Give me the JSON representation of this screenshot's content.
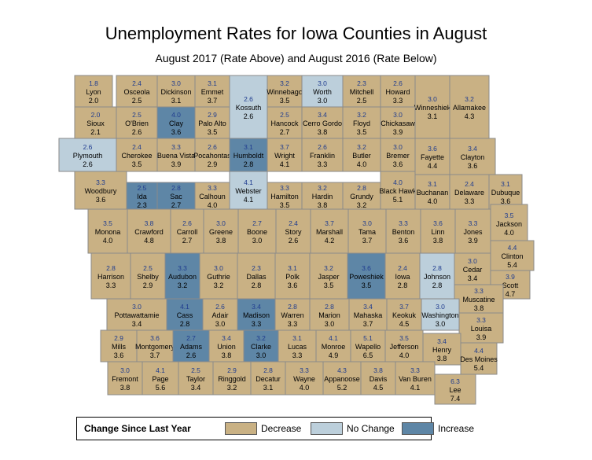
{
  "title": "Unemployment Rates for Iowa Counties in August",
  "subtitle": "August 2017 (Rate Above) and August 2016 (Rate Below)",
  "colors": {
    "decrease": "#c9b184",
    "nochange": "#bccfdb",
    "increase": "#5e86a6",
    "border": "#8a8a8a"
  },
  "legend": {
    "title": "Change Since Last Year",
    "decrease": "Decrease",
    "nochange": "No Change",
    "increase": "Increase"
  },
  "counties": [
    {
      "name": "Lyon",
      "r17": "1.8",
      "r16": "2.0",
      "c": "d"
    },
    {
      "name": "Osceola",
      "r17": "2.4",
      "r16": "2.5",
      "c": "d"
    },
    {
      "name": "Dickinson",
      "r17": "3.0",
      "r16": "3.1",
      "c": "d"
    },
    {
      "name": "Emmet",
      "r17": "3.1",
      "r16": "3.7",
      "c": "d"
    },
    {
      "name": "Kossuth",
      "r17": "2.6",
      "r16": "2.6",
      "c": "n"
    },
    {
      "name": "Winnebago",
      "r17": "3.2",
      "r16": "3.5",
      "c": "d"
    },
    {
      "name": "Worth",
      "r17": "3.0",
      "r16": "3.0",
      "c": "n"
    },
    {
      "name": "Mitchell",
      "r17": "2.3",
      "r16": "2.5",
      "c": "d"
    },
    {
      "name": "Howard",
      "r17": "2.6",
      "r16": "3.3",
      "c": "d"
    },
    {
      "name": "Winneshiek",
      "r17": "3.0",
      "r16": "3.1",
      "c": "d"
    },
    {
      "name": "Allamakee",
      "r17": "3.2",
      "r16": "4.3",
      "c": "d"
    },
    {
      "name": "Sioux",
      "r17": "2.0",
      "r16": "2.1",
      "c": "d"
    },
    {
      "name": "O'Brien",
      "r17": "2.5",
      "r16": "2.6",
      "c": "d"
    },
    {
      "name": "Clay",
      "r17": "4.0",
      "r16": "3.6",
      "c": "i"
    },
    {
      "name": "Palo Alto",
      "r17": "2.9",
      "r16": "3.5",
      "c": "d"
    },
    {
      "name": "Hancock",
      "r17": "2.5",
      "r16": "2.7",
      "c": "d"
    },
    {
      "name": "Cerro Gordo",
      "r17": "3.4",
      "r16": "3.8",
      "c": "d"
    },
    {
      "name": "Floyd",
      "r17": "3.2",
      "r16": "3.5",
      "c": "d"
    },
    {
      "name": "Chickasaw",
      "r17": "3.0",
      "r16": "3.9",
      "c": "d"
    },
    {
      "name": "Plymouth",
      "r17": "2.6",
      "r16": "2.6",
      "c": "n"
    },
    {
      "name": "Cherokee",
      "r17": "2.4",
      "r16": "3.5",
      "c": "d"
    },
    {
      "name": "Buena Vista",
      "r17": "3.3",
      "r16": "3.9",
      "c": "d"
    },
    {
      "name": "Pocahontas",
      "r17": "2.6",
      "r16": "2.9",
      "c": "d"
    },
    {
      "name": "Humboldt",
      "r17": "3.1",
      "r16": "2.8",
      "c": "i"
    },
    {
      "name": "Wright",
      "r17": "3.7",
      "r16": "4.1",
      "c": "d"
    },
    {
      "name": "Franklin",
      "r17": "2.6",
      "r16": "3.3",
      "c": "d"
    },
    {
      "name": "Butler",
      "r17": "3.2",
      "r16": "4.0",
      "c": "d"
    },
    {
      "name": "Bremer",
      "r17": "3.0",
      "r16": "3.6",
      "c": "d"
    },
    {
      "name": "Fayette",
      "r17": "3.6",
      "r16": "4.4",
      "c": "d"
    },
    {
      "name": "Clayton",
      "r17": "3.4",
      "r16": "3.6",
      "c": "d"
    },
    {
      "name": "Woodbury",
      "r17": "3.3",
      "r16": "3.6",
      "c": "d"
    },
    {
      "name": "Ida",
      "r17": "2.5",
      "r16": "2.3",
      "c": "i"
    },
    {
      "name": "Sac",
      "r17": "2.8",
      "r16": "2.7",
      "c": "i"
    },
    {
      "name": "Calhoun",
      "r17": "3.3",
      "r16": "4.0",
      "c": "d"
    },
    {
      "name": "Webster",
      "r17": "4.1",
      "r16": "4.1",
      "c": "n"
    },
    {
      "name": "Hamilton",
      "r17": "3.3",
      "r16": "3.5",
      "c": "d"
    },
    {
      "name": "Hardin",
      "r17": "3.2",
      "r16": "3.8",
      "c": "d"
    },
    {
      "name": "Grundy",
      "r17": "2.8",
      "r16": "3.2",
      "c": "d"
    },
    {
      "name": "Black Hawk",
      "r17": "4.0",
      "r16": "5.1",
      "c": "d"
    },
    {
      "name": "Buchanan",
      "r17": "3.1",
      "r16": "4.0",
      "c": "d"
    },
    {
      "name": "Delaware",
      "r17": "2.4",
      "r16": "3.3",
      "c": "d"
    },
    {
      "name": "Dubuque",
      "r17": "3.1",
      "r16": "3.6",
      "c": "d"
    },
    {
      "name": "Monona",
      "r17": "3.5",
      "r16": "4.0",
      "c": "d"
    },
    {
      "name": "Crawford",
      "r17": "3.8",
      "r16": "4.8",
      "c": "d"
    },
    {
      "name": "Carroll",
      "r17": "2.6",
      "r16": "2.7",
      "c": "d"
    },
    {
      "name": "Greene",
      "r17": "3.0",
      "r16": "3.8",
      "c": "d"
    },
    {
      "name": "Boone",
      "r17": "2.7",
      "r16": "3.0",
      "c": "d"
    },
    {
      "name": "Story",
      "r17": "2.4",
      "r16": "2.6",
      "c": "d"
    },
    {
      "name": "Marshall",
      "r17": "3.7",
      "r16": "4.2",
      "c": "d"
    },
    {
      "name": "Tama",
      "r17": "3.0",
      "r16": "3.7",
      "c": "d"
    },
    {
      "name": "Benton",
      "r17": "3.3",
      "r16": "3.6",
      "c": "d"
    },
    {
      "name": "Linn",
      "r17": "3.6",
      "r16": "3.8",
      "c": "d"
    },
    {
      "name": "Jones",
      "r17": "3.3",
      "r16": "3.9",
      "c": "d"
    },
    {
      "name": "Jackson",
      "r17": "3.5",
      "r16": "4.0",
      "c": "d"
    },
    {
      "name": "Clinton",
      "r17": "4.4",
      "r16": "5.4",
      "c": "d"
    },
    {
      "name": "Harrison",
      "r17": "2.8",
      "r16": "3.3",
      "c": "d"
    },
    {
      "name": "Shelby",
      "r17": "2.5",
      "r16": "2.9",
      "c": "d"
    },
    {
      "name": "Audubon",
      "r17": "3.3",
      "r16": "3.2",
      "c": "i"
    },
    {
      "name": "Guthrie",
      "r17": "3.0",
      "r16": "3.2",
      "c": "d"
    },
    {
      "name": "Dallas",
      "r17": "2.3",
      "r16": "2.8",
      "c": "d"
    },
    {
      "name": "Polk",
      "r17": "3.1",
      "r16": "3.6",
      "c": "d"
    },
    {
      "name": "Jasper",
      "r17": "3.2",
      "r16": "3.5",
      "c": "d"
    },
    {
      "name": "Poweshiek",
      "r17": "3.6",
      "r16": "3.5",
      "c": "i"
    },
    {
      "name": "Iowa",
      "r17": "2.4",
      "r16": "2.8",
      "c": "d"
    },
    {
      "name": "Johnson",
      "r17": "2.8",
      "r16": "2.8",
      "c": "n"
    },
    {
      "name": "Cedar",
      "r17": "3.0",
      "r16": "3.4",
      "c": "d"
    },
    {
      "name": "Scott",
      "r17": "3.9",
      "r16": "4.7",
      "c": "d"
    },
    {
      "name": "Muscatine",
      "r17": "3.3",
      "r16": "3.8",
      "c": "d"
    },
    {
      "name": "Pottawattamie",
      "r17": "3.0",
      "r16": "3.4",
      "c": "d"
    },
    {
      "name": "Cass",
      "r17": "4.1",
      "r16": "2.8",
      "c": "i"
    },
    {
      "name": "Adair",
      "r17": "2.6",
      "r16": "3.0",
      "c": "d"
    },
    {
      "name": "Madison",
      "r17": "3.4",
      "r16": "3.3",
      "c": "i"
    },
    {
      "name": "Warren",
      "r17": "2.8",
      "r16": "3.3",
      "c": "d"
    },
    {
      "name": "Marion",
      "r17": "2.8",
      "r16": "3.0",
      "c": "d"
    },
    {
      "name": "Mahaska",
      "r17": "3.4",
      "r16": "3.7",
      "c": "d"
    },
    {
      "name": "Keokuk",
      "r17": "3.7",
      "r16": "4.5",
      "c": "d"
    },
    {
      "name": "Washington",
      "r17": "3.0",
      "r16": "3.0",
      "c": "n"
    },
    {
      "name": "Louisa",
      "r17": "3.3",
      "r16": "3.9",
      "c": "d"
    },
    {
      "name": "Mills",
      "r17": "2.9",
      "r16": "3.6",
      "c": "d"
    },
    {
      "name": "Montgomery",
      "r17": "3.6",
      "r16": "3.7",
      "c": "d"
    },
    {
      "name": "Adams",
      "r17": "2.7",
      "r16": "2.6",
      "c": "i"
    },
    {
      "name": "Union",
      "r17": "3.4",
      "r16": "3.8",
      "c": "d"
    },
    {
      "name": "Clarke",
      "r17": "3.2",
      "r16": "3.0",
      "c": "i"
    },
    {
      "name": "Lucas",
      "r17": "3.1",
      "r16": "3.3",
      "c": "d"
    },
    {
      "name": "Monroe",
      "r17": "4.1",
      "r16": "4.9",
      "c": "d"
    },
    {
      "name": "Wapello",
      "r17": "5.1",
      "r16": "6.5",
      "c": "d"
    },
    {
      "name": "Jefferson",
      "r17": "3.5",
      "r16": "4.0",
      "c": "d"
    },
    {
      "name": "Henry",
      "r17": "3.4",
      "r16": "3.8",
      "c": "d"
    },
    {
      "name": "Des Moines",
      "r17": "4.4",
      "r16": "5.4",
      "c": "d"
    },
    {
      "name": "Fremont",
      "r17": "3.0",
      "r16": "3.8",
      "c": "d"
    },
    {
      "name": "Page",
      "r17": "4.1",
      "r16": "5.6",
      "c": "d"
    },
    {
      "name": "Taylor",
      "r17": "2.5",
      "r16": "3.4",
      "c": "d"
    },
    {
      "name": "Ringgold",
      "r17": "2.9",
      "r16": "3.2",
      "c": "d"
    },
    {
      "name": "Decatur",
      "r17": "2.8",
      "r16": "3.1",
      "c": "d"
    },
    {
      "name": "Wayne",
      "r17": "3.3",
      "r16": "4.0",
      "c": "d"
    },
    {
      "name": "Appanoose",
      "r17": "4.3",
      "r16": "5.2",
      "c": "d"
    },
    {
      "name": "Davis",
      "r17": "3.8",
      "r16": "4.5",
      "c": "d"
    },
    {
      "name": "Van Buren",
      "r17": "3.3",
      "r16": "4.1",
      "c": "d"
    },
    {
      "name": "Lee",
      "r17": "6.3",
      "r16": "7.4",
      "c": "d"
    }
  ]
}
